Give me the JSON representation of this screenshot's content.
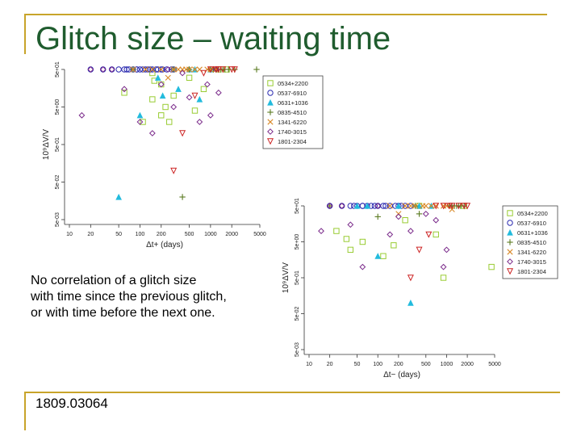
{
  "slide": {
    "title": "Glitch size – waiting time",
    "caption_lines": [
      "No correlation of a glitch size",
      "with time since the previous glitch,",
      "or with time before the next one."
    ],
    "arxiv_id": "1809.03064",
    "accent_color": "#c8a42a",
    "title_color": "#1f5c2e"
  },
  "chart_data": [
    {
      "type": "scatter",
      "xlabel": "Δt+ (days)",
      "ylabel": "10⁹ΔV/V",
      "x_scale": "log",
      "y_scale": "log",
      "x_ticks": [
        "10",
        "20",
        "50",
        "100",
        "200",
        "500",
        "1000",
        "2000",
        "5000"
      ],
      "y_ticks": [
        "5e-03",
        "5e-02",
        "5e-01",
        "5e+00",
        "5e+01"
      ],
      "legend_position": "top-right",
      "legend": [
        "0534+2200",
        "0537-6910",
        "0631+1036",
        "0835-4510",
        "1341-6220",
        "1740-3015",
        "1801-2304"
      ],
      "series": [
        {
          "name": "0534+2200",
          "marker": "square",
          "color": "#99cc33",
          "points": [
            [
              150,
              8
            ],
            [
              200,
              3
            ],
            [
              230,
              5
            ],
            [
              150,
              40
            ],
            [
              300,
              10
            ],
            [
              200,
              20
            ],
            [
              260,
              2
            ],
            [
              500,
              30
            ],
            [
              1700,
              200
            ],
            [
              1300,
              600
            ],
            [
              800,
              15
            ],
            [
              600,
              4
            ],
            [
              110,
              2
            ],
            [
              60,
              12
            ],
            [
              160,
              25
            ]
          ]
        },
        {
          "name": "0537-6910",
          "marker": "circle",
          "color": "#2b2bb0",
          "points": [
            [
              50,
              300
            ],
            [
              60,
              350
            ],
            [
              70,
              500
            ],
            [
              90,
              700
            ],
            [
              80,
              400
            ],
            [
              110,
              600
            ],
            [
              130,
              900
            ],
            [
              150,
              1200
            ],
            [
              170,
              800
            ],
            [
              200,
              1500
            ],
            [
              240,
              1000
            ],
            [
              100,
              300
            ],
            [
              120,
              450
            ],
            [
              90,
              250
            ],
            [
              280,
              1100
            ],
            [
              300,
              1300
            ],
            [
              140,
              700
            ],
            [
              210,
              900
            ],
            [
              65,
              250
            ],
            [
              180,
              1400
            ],
            [
              30,
              1000
            ],
            [
              40,
              600
            ],
            [
              20,
              50
            ]
          ]
        },
        {
          "name": "0631+1036",
          "marker": "triangle",
          "color": "#22bbdd",
          "points": [
            [
              50,
              0.02
            ],
            [
              100,
              3
            ],
            [
              210,
              10
            ],
            [
              600,
              200
            ],
            [
              180,
              30
            ],
            [
              700,
              8
            ],
            [
              350,
              15
            ],
            [
              1000,
              300
            ],
            [
              500,
              90
            ]
          ]
        },
        {
          "name": "0835-4510",
          "marker": "plus",
          "color": "#5a7a20",
          "points": [
            [
              1100,
              50000
            ],
            [
              1300,
              40000
            ],
            [
              1000,
              38000
            ],
            [
              1500,
              48000
            ],
            [
              1200,
              42000
            ],
            [
              300,
              2000
            ],
            [
              80,
              500
            ],
            [
              1800,
              60000
            ],
            [
              4500,
              150
            ],
            [
              2200,
              900
            ],
            [
              1100,
              36000
            ],
            [
              1400,
              43000
            ],
            [
              500,
              10000
            ],
            [
              400,
              0.02
            ],
            [
              1600,
              52000
            ]
          ]
        },
        {
          "name": "1341-6220",
          "marker": "cross",
          "color": "#d98a2a",
          "points": [
            [
              150,
              100
            ],
            [
              80,
              150
            ],
            [
              300,
              400
            ],
            [
              1000,
              2000
            ],
            [
              200,
              50
            ],
            [
              400,
              1500
            ],
            [
              500,
              60000
            ],
            [
              250,
              30
            ],
            [
              600,
              6000
            ],
            [
              120,
              200
            ],
            [
              700,
              2500
            ],
            [
              900,
              30000
            ],
            [
              350,
              900
            ],
            [
              450,
              700
            ],
            [
              1200,
              600
            ]
          ]
        },
        {
          "name": "1740-3015",
          "marker": "diamond",
          "color": "#7a2a8a",
          "points": [
            [
              20,
              2000
            ],
            [
              30,
              5000
            ],
            [
              40,
              3000
            ],
            [
              200,
              20
            ],
            [
              300,
              5
            ],
            [
              100,
              2
            ],
            [
              400,
              40
            ],
            [
              60,
              15
            ],
            [
              1000,
              3
            ],
            [
              700,
              2
            ],
            [
              15,
              3
            ],
            [
              250,
              60
            ],
            [
              500,
              9
            ],
            [
              150,
              1
            ],
            [
              1200,
              700
            ],
            [
              1300,
              12
            ],
            [
              900,
              20
            ]
          ]
        },
        {
          "name": "1801-2304",
          "marker": "triangle-down",
          "color": "#cc2222",
          "points": [
            [
              1500,
              300
            ],
            [
              800,
              40
            ],
            [
              1000,
              3000
            ],
            [
              600,
              10
            ],
            [
              2000,
              4000
            ],
            [
              400,
              1
            ],
            [
              1200,
              200
            ],
            [
              1300,
              600
            ],
            [
              300,
              0.1
            ],
            [
              2200,
              5000
            ]
          ]
        }
      ]
    },
    {
      "type": "scatter",
      "xlabel": "Δt− (days)",
      "ylabel": "10⁹ΔV/V",
      "x_scale": "log",
      "y_scale": "log",
      "x_ticks": [
        "10",
        "20",
        "50",
        "100",
        "200",
        "500",
        "1000",
        "2000",
        "5000"
      ],
      "y_ticks": [
        "5e-03",
        "5e-02",
        "5e-01",
        "5e+00",
        "5e+01"
      ],
      "legend_position": "top-right",
      "legend": [
        "0534+2200",
        "0537-6910",
        "0631+1036",
        "0835-4510",
        "1341-6220",
        "1740-3015",
        "1801-2304"
      ],
      "series": [
        {
          "name": "0534+2200",
          "marker": "square",
          "color": "#99cc33",
          "points": [
            [
              25,
              10
            ],
            [
              40,
              3
            ],
            [
              60,
              5
            ],
            [
              120,
              2
            ],
            [
              35,
              6
            ],
            [
              4500,
              1
            ],
            [
              900,
              0.5
            ],
            [
              250,
              20
            ],
            [
              170,
              4
            ],
            [
              1800,
              200
            ],
            [
              400,
              90
            ],
            [
              700,
              8
            ]
          ]
        },
        {
          "name": "0537-6910",
          "marker": "circle",
          "color": "#2b2bb0",
          "points": [
            [
              20,
              1200
            ],
            [
              30,
              1500
            ],
            [
              40,
              2000
            ],
            [
              50,
              900
            ],
            [
              60,
              1100
            ],
            [
              80,
              800
            ],
            [
              100,
              700
            ],
            [
              150,
              600
            ],
            [
              200,
              900
            ],
            [
              250,
              1000
            ],
            [
              120,
              500
            ],
            [
              70,
              400
            ],
            [
              90,
              300
            ],
            [
              180,
              1300
            ],
            [
              300,
              500
            ],
            [
              60,
              2500
            ],
            [
              45,
              700
            ],
            [
              130,
              1800
            ],
            [
              220,
              2200
            ]
          ]
        },
        {
          "name": "0631+1036",
          "marker": "triangle",
          "color": "#22bbdd",
          "points": [
            [
              50,
              3000
            ],
            [
              70,
              8000
            ],
            [
              300,
              0.1
            ],
            [
              400,
              600
            ],
            [
              100,
              2
            ],
            [
              200,
              200
            ],
            [
              600,
              50
            ]
          ]
        },
        {
          "name": "0835-4510",
          "marker": "plus",
          "color": "#5a7a20",
          "points": [
            [
              1200,
              40000
            ],
            [
              1400,
              50000
            ],
            [
              1100,
              45000
            ],
            [
              1600,
              55000
            ],
            [
              1300,
              38000
            ],
            [
              350,
              5000
            ],
            [
              20,
              800
            ],
            [
              1800,
              60000
            ],
            [
              1500,
              48000
            ],
            [
              400,
              30
            ],
            [
              100,
              25
            ]
          ]
        },
        {
          "name": "1341-6220",
          "marker": "cross",
          "color": "#d98a2a",
          "points": [
            [
              150,
              200
            ],
            [
              300,
              4000
            ],
            [
              500,
              1000
            ],
            [
              200,
              30
            ],
            [
              250,
              500
            ],
            [
              700,
              30000
            ],
            [
              450,
              80
            ],
            [
              900,
              20000
            ],
            [
              350,
              300
            ],
            [
              600,
              100
            ],
            [
              1000,
              5000
            ],
            [
              1200,
              40
            ]
          ]
        },
        {
          "name": "1740-3015",
          "marker": "diamond",
          "color": "#7a2a8a",
          "points": [
            [
              20,
              2500
            ],
            [
              15,
              10
            ],
            [
              30,
              3000
            ],
            [
              40,
              15
            ],
            [
              100,
              60
            ],
            [
              200,
              25
            ],
            [
              300,
              10
            ],
            [
              500,
              30
            ],
            [
              1000,
              3
            ],
            [
              700,
              20
            ],
            [
              150,
              8
            ],
            [
              60,
              1
            ],
            [
              900,
              1
            ]
          ]
        },
        {
          "name": "1801-2304",
          "marker": "triangle-down",
          "color": "#cc2222",
          "points": [
            [
              1500,
              400
            ],
            [
              700,
              50
            ],
            [
              1100,
              1500
            ],
            [
              550,
              8
            ],
            [
              1800,
              2000
            ],
            [
              400,
              3
            ],
            [
              1200,
              300
            ],
            [
              300,
              0.5
            ],
            [
              900,
              200
            ],
            [
              2000,
              4000
            ]
          ]
        }
      ]
    }
  ]
}
